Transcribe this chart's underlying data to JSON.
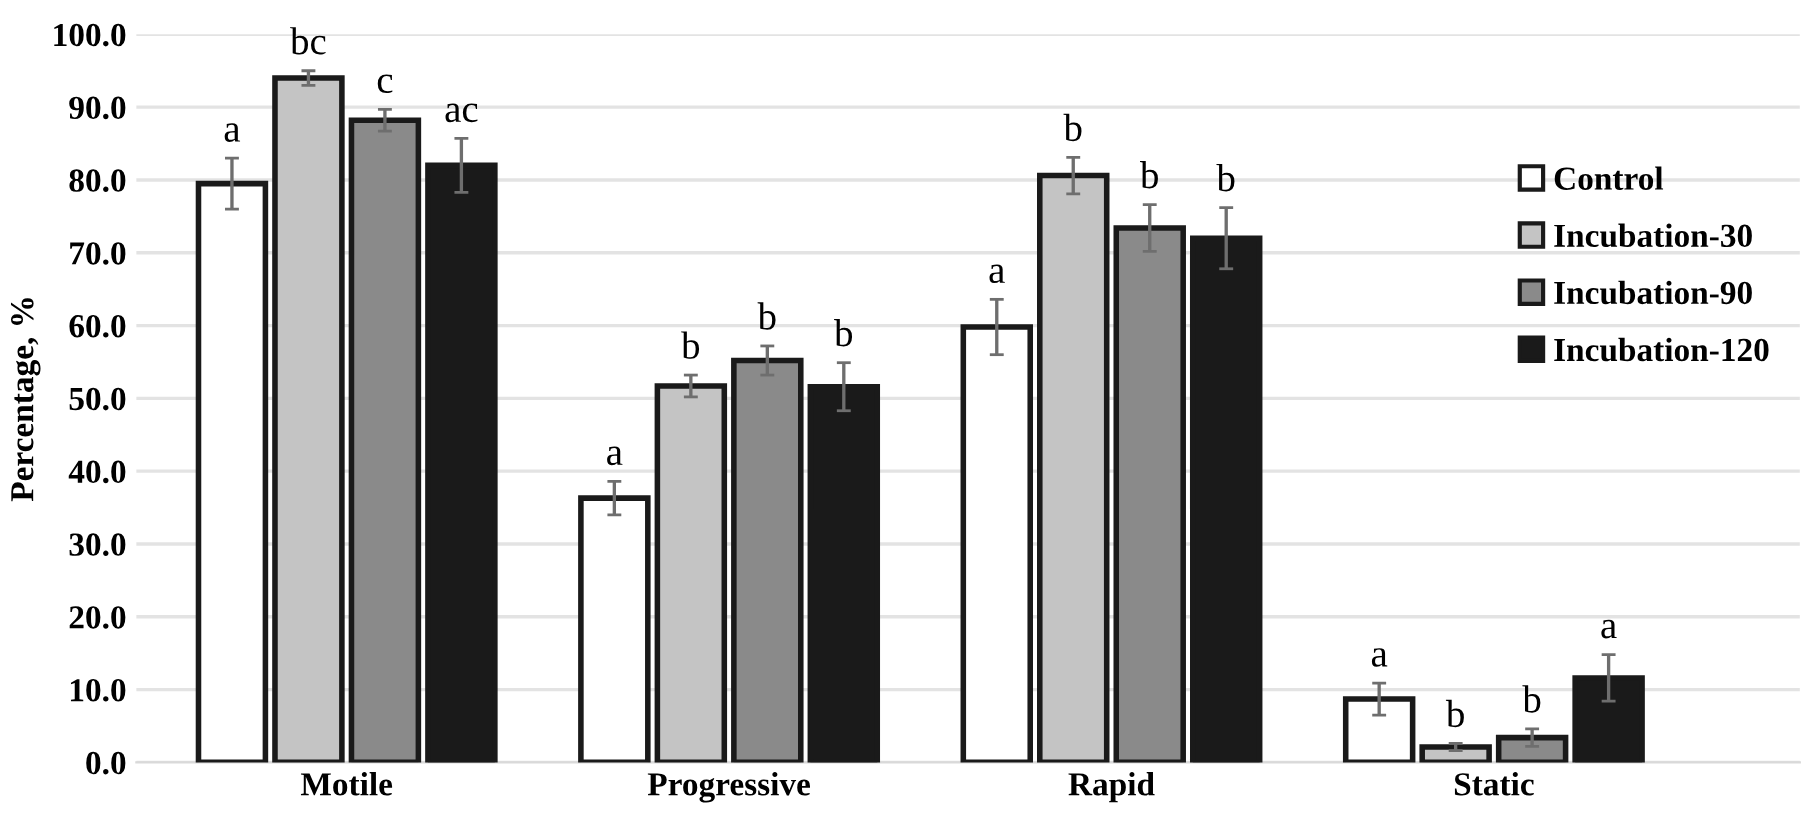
{
  "chart_data": {
    "type": "bar",
    "ylabel": "Percentage, %",
    "categories": [
      "Motile",
      "Progressive",
      "Rapid",
      "Static"
    ],
    "series": [
      {
        "name": "Control",
        "color": "#ffffff",
        "values": [
          79.5,
          36.3,
          59.8,
          8.7
        ],
        "errors": [
          3.5,
          2.3,
          3.8,
          2.2
        ],
        "value_labels": [
          "a",
          "a",
          "a",
          "a"
        ]
      },
      {
        "name": "Incubation-30",
        "color": "#c4c4c4",
        "values": [
          94.0,
          51.7,
          80.6,
          2.1
        ],
        "errors": [
          1.0,
          1.5,
          2.5,
          0.5
        ],
        "value_labels": [
          "bc",
          "b",
          "b",
          "b"
        ]
      },
      {
        "name": "Incubation-90",
        "color": "#8a8a8a",
        "values": [
          88.2,
          55.2,
          73.4,
          3.4
        ],
        "errors": [
          1.5,
          2.0,
          3.2,
          1.2
        ],
        "value_labels": [
          "c",
          "b",
          "b",
          "b"
        ]
      },
      {
        "name": "Incubation-120",
        "color": "#1a1a1a",
        "values": [
          82.0,
          51.6,
          72.0,
          11.6
        ],
        "errors": [
          3.7,
          3.3,
          4.2,
          3.2
        ],
        "value_labels": [
          "ac",
          "b",
          "b",
          "a"
        ]
      }
    ],
    "ylim": [
      0,
      100
    ],
    "yticks": [
      {
        "value": 0,
        "label": "0.0"
      },
      {
        "value": 10,
        "label": "10.0"
      },
      {
        "value": 20,
        "label": "20.0"
      },
      {
        "value": 30,
        "label": "30.0"
      },
      {
        "value": 40,
        "label": "40.0"
      },
      {
        "value": 50,
        "label": "50.0"
      },
      {
        "value": 60,
        "label": "60.0"
      },
      {
        "value": 70,
        "label": "70.0"
      },
      {
        "value": 80,
        "label": "80.0"
      },
      {
        "value": 90,
        "label": "90.0"
      },
      {
        "value": 100,
        "label": "100.0"
      }
    ],
    "grid": "y",
    "legend": "top right"
  }
}
